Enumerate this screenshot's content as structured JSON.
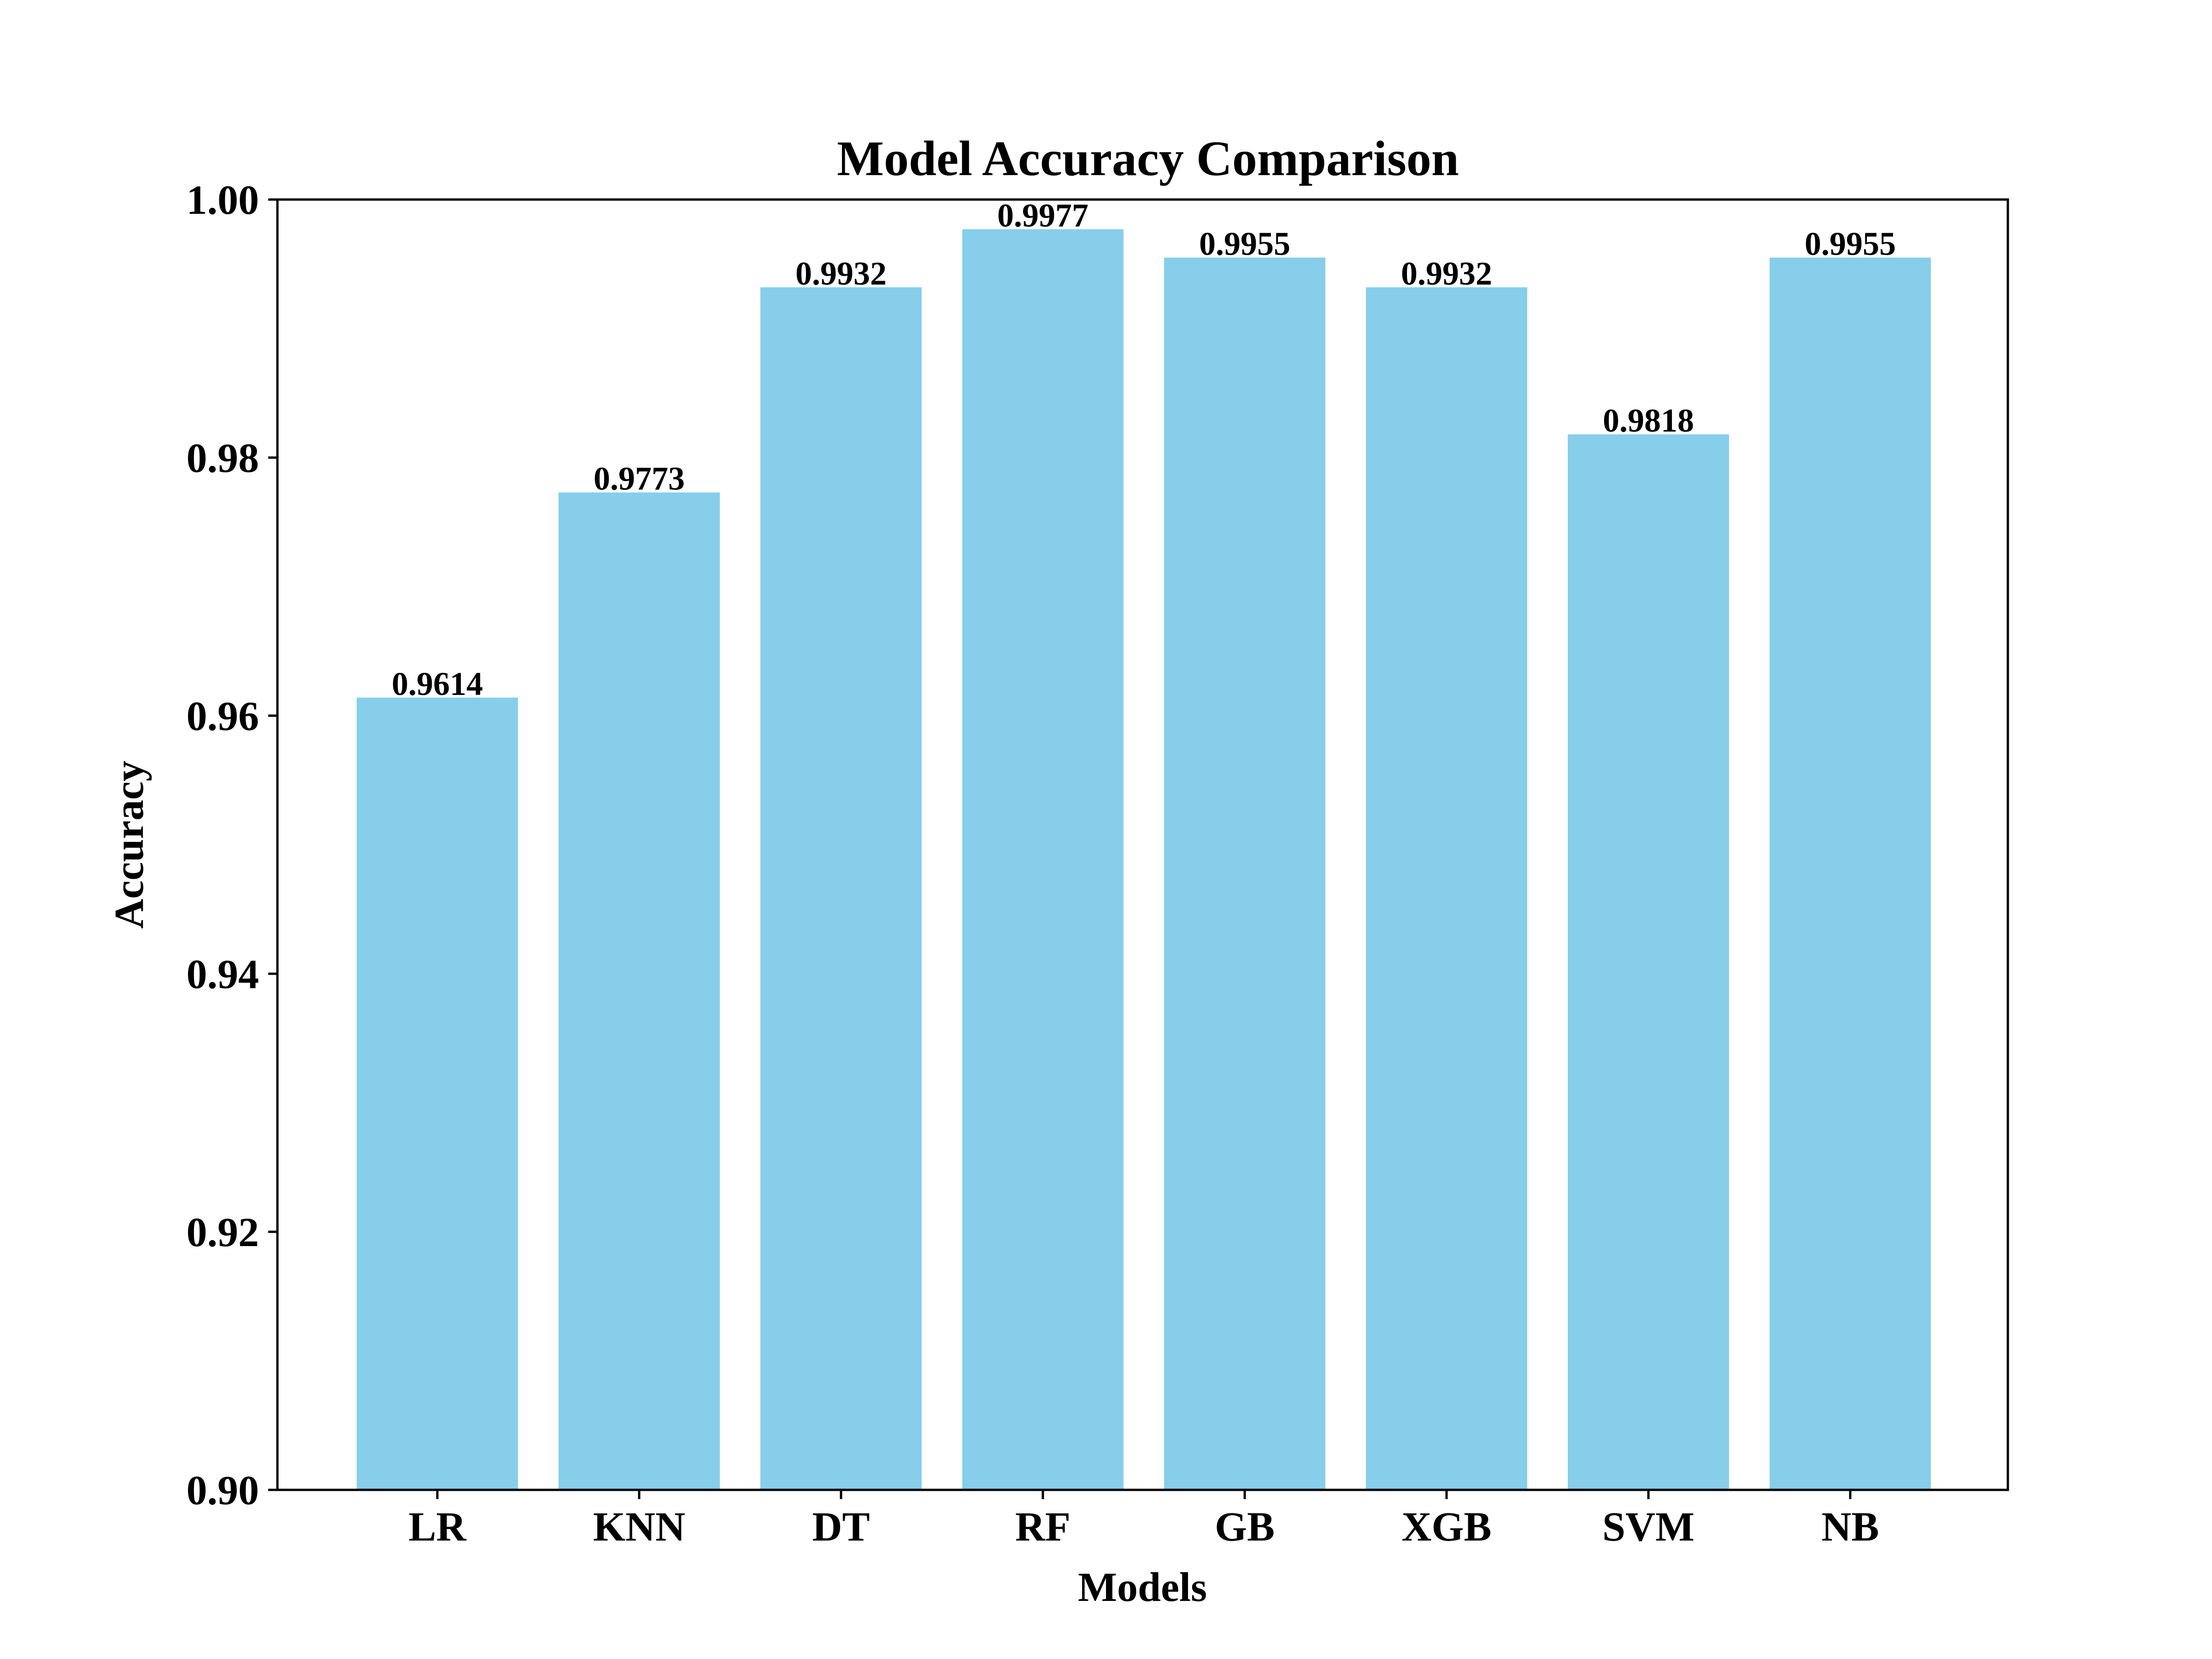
{
  "chart_data": {
    "type": "bar",
    "title": "Model Accuracy Comparison",
    "xlabel": "Models",
    "ylabel": "Accuracy",
    "categories": [
      "LR",
      "KNN",
      "DT",
      "RF",
      "GB",
      "XGB",
      "SVM",
      "NB"
    ],
    "values": [
      0.9614,
      0.9773,
      0.9932,
      0.9977,
      0.9955,
      0.9932,
      0.9818,
      0.9955
    ],
    "value_labels": [
      "0.9614",
      "0.9773",
      "0.9932",
      "0.9977",
      "0.9955",
      "0.9932",
      "0.9818",
      "0.9955"
    ],
    "ylim": [
      0.9,
      1.0
    ],
    "yticks": [
      0.9,
      0.92,
      0.94,
      0.96,
      0.98,
      1.0
    ],
    "ytick_labels": [
      "0.90",
      "0.92",
      "0.94",
      "0.96",
      "0.98",
      "1.00"
    ],
    "bar_color": "#87CEEB",
    "grid": false,
    "legend": "none"
  }
}
